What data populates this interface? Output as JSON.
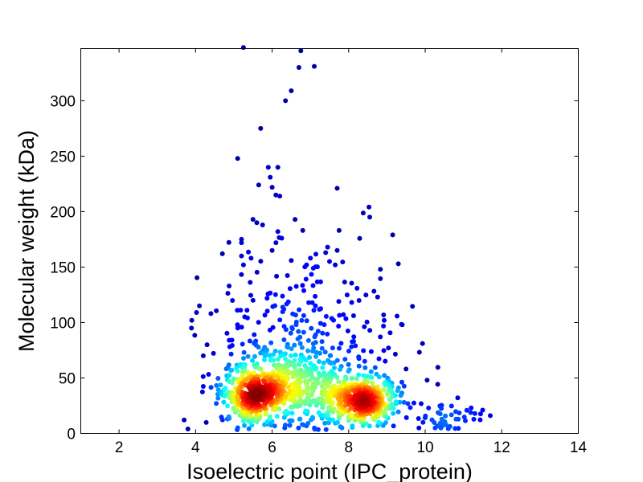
{
  "chart_data": {
    "type": "scatter",
    "title": "",
    "xlabel": "Isoelectric point (IPC_protein)",
    "ylabel": "Molecular weight (kDa)",
    "xlim": [
      1,
      14
    ],
    "ylim": [
      0,
      347
    ],
    "xticks": [
      2,
      4,
      6,
      8,
      10,
      12,
      14
    ],
    "yticks": [
      0,
      50,
      100,
      150,
      200,
      250,
      300
    ],
    "grid": false,
    "color_encoding": "point density (jet colormap, blue=low, red=high)",
    "colormap": [
      "#00007f",
      "#0000ff",
      "#007fff",
      "#00ffff",
      "#7fff7f",
      "#ffff00",
      "#ff7f00",
      "#ff0000",
      "#7f0000"
    ],
    "outlier_points": [
      [
        5.25,
        348
      ],
      [
        6.75,
        345
      ],
      [
        6.7,
        330
      ],
      [
        7.1,
        331
      ],
      [
        6.5,
        309
      ],
      [
        6.35,
        300
      ],
      [
        5.7,
        275
      ],
      [
        5.1,
        248
      ],
      [
        5.9,
        240
      ],
      [
        6.15,
        240
      ],
      [
        5.95,
        231
      ],
      [
        5.65,
        224
      ],
      [
        6.0,
        222
      ],
      [
        7.7,
        221
      ],
      [
        6.1,
        215
      ],
      [
        6.2,
        214
      ],
      [
        5.5,
        193
      ],
      [
        6.6,
        193
      ],
      [
        8.55,
        195
      ],
      [
        5.6,
        190
      ],
      [
        5.75,
        188
      ],
      [
        6.15,
        182
      ],
      [
        6.8,
        183
      ],
      [
        7.75,
        183
      ],
      [
        9.15,
        179
      ],
      [
        6.25,
        176
      ],
      [
        5.2,
        175
      ],
      [
        5.2,
        172
      ],
      [
        6.1,
        172
      ],
      [
        4.7,
        162
      ],
      [
        5.2,
        160
      ],
      [
        5.45,
        158
      ],
      [
        6.0,
        165
      ],
      [
        6.5,
        156
      ],
      [
        7.45,
        168
      ],
      [
        7.4,
        163
      ],
      [
        7.7,
        165
      ],
      [
        7.5,
        155
      ],
      [
        7.65,
        152
      ],
      [
        5.25,
        152
      ],
      [
        7.0,
        158
      ],
      [
        6.9,
        152
      ],
      [
        3.9,
        102
      ],
      [
        4.1,
        115
      ],
      [
        4.4,
        108
      ],
      [
        4.3,
        80
      ],
      [
        4.2,
        70
      ],
      [
        9.4,
        98
      ],
      [
        10.05,
        48
      ],
      [
        9.5,
        58
      ],
      [
        11.2,
        23
      ],
      [
        11.7,
        16
      ],
      [
        10.85,
        32
      ],
      [
        3.7,
        12
      ],
      [
        3.8,
        4
      ],
      [
        11.5,
        21
      ],
      [
        11.3,
        18
      ]
    ],
    "clusters": [
      {
        "center": [
          5.6,
          35
        ],
        "sd": [
          0.42,
          13
        ],
        "count": 450
      },
      {
        "center": [
          8.3,
          30
        ],
        "sd": [
          0.45,
          11
        ],
        "count": 400
      },
      {
        "center": [
          6.8,
          40
        ],
        "sd": [
          0.6,
          20
        ],
        "count": 280
      },
      {
        "center": [
          6.8,
          85
        ],
        "sd": [
          1.3,
          35
        ],
        "count": 260
      },
      {
        "center": [
          10.5,
          15
        ],
        "sd": [
          0.5,
          7
        ],
        "count": 45
      }
    ]
  }
}
